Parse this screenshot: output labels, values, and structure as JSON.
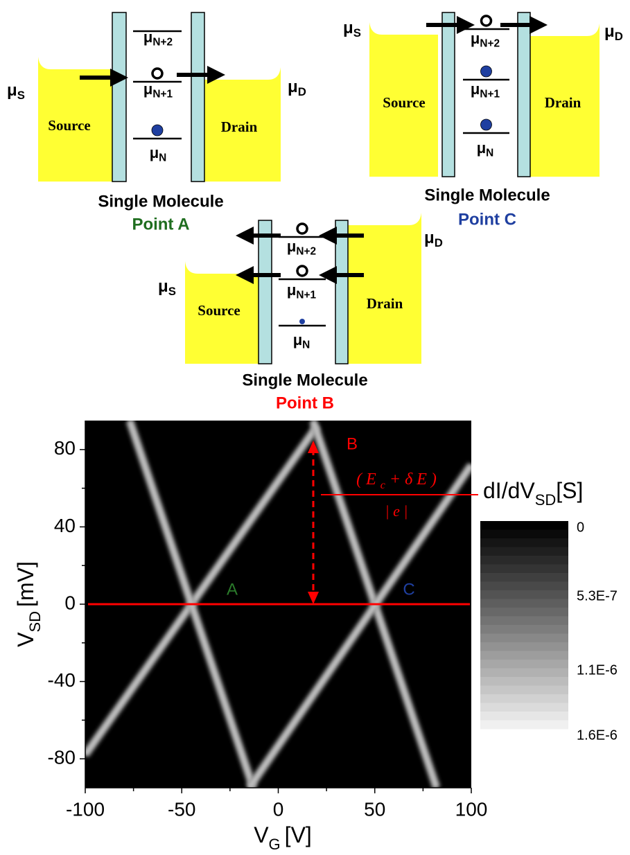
{
  "diagrams": [
    {
      "mu_source": {
        "symbol": "μ",
        "sub": "S"
      },
      "mu_drain": {
        "symbol": "μ",
        "sub": "D"
      },
      "levels": [
        {
          "symbol": "μ",
          "sub": "N+2"
        },
        {
          "symbol": "μ",
          "sub": "N+1"
        },
        {
          "symbol": "μ",
          "sub": "N"
        }
      ],
      "source": "Source",
      "drain": "Drain",
      "caption": "Single Molecule",
      "point": "Point A",
      "point_color": "#1f6e1f"
    },
    {
      "mu_source": {
        "symbol": "μ",
        "sub": "S"
      },
      "mu_drain": {
        "symbol": "μ",
        "sub": "D"
      },
      "levels": [
        {
          "symbol": "μ",
          "sub": "N+2"
        },
        {
          "symbol": "μ",
          "sub": "N+1"
        },
        {
          "symbol": "μ",
          "sub": "N"
        }
      ],
      "source": "Source",
      "drain": "Drain",
      "caption": "Single Molecule",
      "point": "Point C",
      "point_color": "#1f3fa0"
    },
    {
      "mu_source": {
        "symbol": "μ",
        "sub": "S"
      },
      "mu_drain": {
        "symbol": "μ",
        "sub": "D"
      },
      "levels": [
        {
          "symbol": "μ",
          "sub": "N+2"
        },
        {
          "symbol": "μ",
          "sub": "N+1"
        },
        {
          "symbol": "μ",
          "sub": "N"
        }
      ],
      "source": "Source",
      "drain": "Drain",
      "caption": "Single Molecule",
      "point": "Point B",
      "point_color": "#ff0000"
    }
  ],
  "chart_data": {
    "type": "heatmap",
    "x_label": {
      "symbol": "V",
      "sub": "G",
      "unit": "[V]"
    },
    "y_label": {
      "symbol": "V",
      "sub": "SD",
      "unit": "[mV]"
    },
    "xlim": [
      -100,
      100
    ],
    "xticks": [
      -100,
      -50,
      0,
      50,
      100
    ],
    "ylim": [
      -95,
      95
    ],
    "yticks": [
      -80,
      -40,
      0,
      40,
      80
    ],
    "ridges": [
      {
        "x": [
          -100,
          20
        ],
        "y": [
          -78,
          92
        ]
      },
      {
        "x": [
          -77,
          -13
        ],
        "y": [
          95,
          -95
        ]
      },
      {
        "x": [
          18,
          82
        ],
        "y": [
          95,
          -95
        ]
      },
      {
        "x": [
          -15,
          100
        ],
        "y": [
          -95,
          72
        ]
      }
    ],
    "reference_line": {
      "y": 0,
      "color": "#ff0000"
    },
    "annotations": [
      {
        "text": "A",
        "color": "#2a7a2a"
      },
      {
        "text": "B",
        "color": "#ff0000"
      },
      {
        "text": "C",
        "color": "#1f3fa0"
      }
    ],
    "formula": {
      "numerator": [
        "( E ",
        "c",
        " +  δ E )"
      ],
      "denominator": "| e |",
      "color": "#ff0000"
    },
    "colorbar": {
      "title": {
        "main": "dI/dV",
        "sub": "SD",
        "unit": "[S]"
      },
      "clim": [
        0,
        1.6e-06
      ],
      "ticks": [
        0,
        {
          "value": 5.3e-07,
          "label": "5.3E-7"
        },
        {
          "value": 1.1e-06,
          "label": "1.1E-6"
        },
        {
          "value": 1.6e-06,
          "label": "1.6E-6"
        }
      ]
    }
  }
}
